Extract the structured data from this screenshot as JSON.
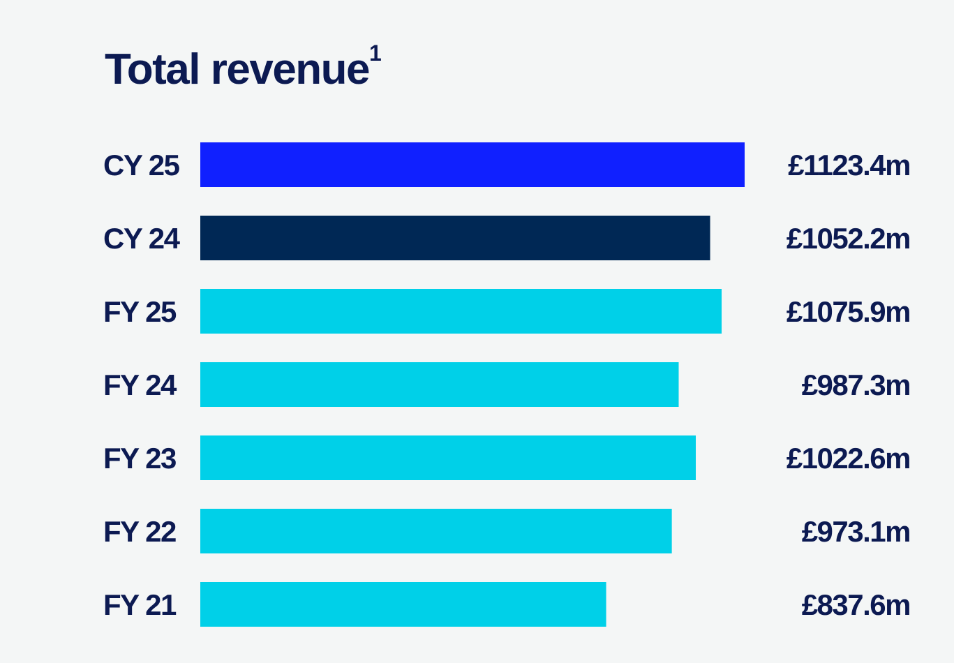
{
  "chart_data": {
    "type": "bar",
    "orientation": "horizontal",
    "title": "Total revenue",
    "title_footnote": "1",
    "categories": [
      "CY 25",
      "CY 24",
      "FY 25",
      "FY 24",
      "FY 23",
      "FY 22",
      "FY 21"
    ],
    "values": [
      1123.4,
      1052.2,
      1075.9,
      987.3,
      1022.6,
      973.1,
      837.6
    ],
    "data_labels": [
      "£1123.4m",
      "£1052.2m",
      "£1075.9m",
      "£987.3m",
      "£1022.6m",
      "£973.1m",
      "£837.6m"
    ],
    "colors": [
      "#1020ff",
      "#002855",
      "#00d0e8",
      "#00d0e8",
      "#00d0e8",
      "#00d0e8",
      "#00d0e8"
    ],
    "xlim": [
      0,
      1123.4
    ],
    "grid": false,
    "legend": "none"
  }
}
